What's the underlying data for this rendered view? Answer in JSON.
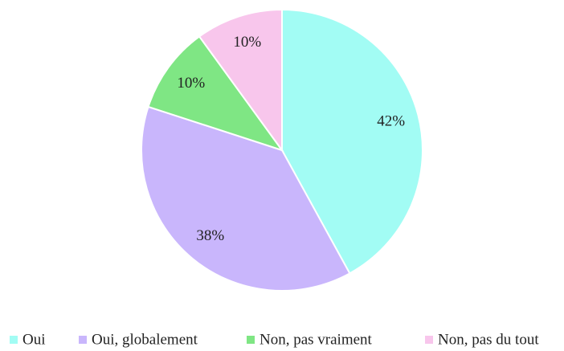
{
  "chart_data": {
    "type": "pie",
    "categories": [
      "Oui",
      "Oui, globalement",
      "Non, pas vraiment",
      "Non, pas du tout"
    ],
    "values": [
      42,
      38,
      10,
      10
    ],
    "value_labels": [
      "42%",
      "38%",
      "10%",
      "10%"
    ],
    "colors": [
      "#a2fcf4",
      "#c9b6fc",
      "#7fe684",
      "#f8c6ec"
    ],
    "legend": "bottom"
  }
}
